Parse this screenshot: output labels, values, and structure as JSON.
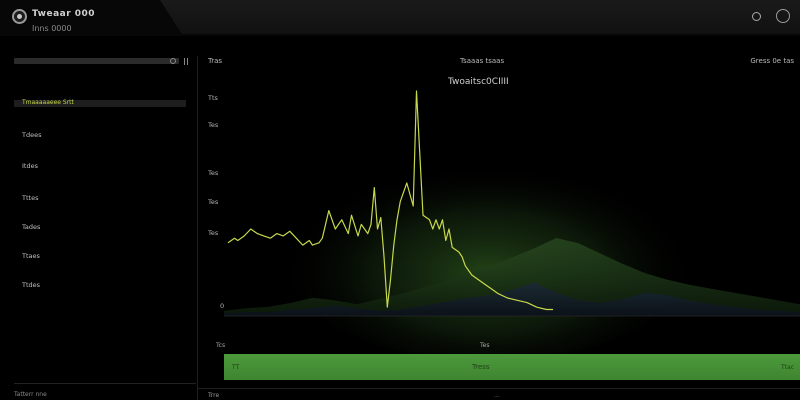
{
  "header": {
    "title": "Tweaar 000",
    "subtitle": "Inns 0000"
  },
  "sidebar": {
    "active_item": "Tmaaaaaeee Srtt",
    "items": [
      "Tdees",
      "Itdes",
      "Tttes",
      "Tades",
      "Ttaes",
      "Ttdes"
    ],
    "footer": "Tatterr nne"
  },
  "main": {
    "left_label": "Tras",
    "center_label": "Tsaaas tsaas",
    "right_label": "Gress 0e tas",
    "bottom_left": "Trre",
    "bottom_mid": "..."
  },
  "progress": {
    "value": 1.0,
    "start_label": "TT",
    "label": "Tress",
    "end_label": "Ttac",
    "axis_left": "Tcs",
    "axis_mid": "Tes"
  },
  "colors": {
    "accent": "#c7d84a",
    "progress": "#4a9439",
    "area_glow": "#2f5a22"
  },
  "chart_data": {
    "type": "line",
    "title": "Twoaitsc0CIIII",
    "y_tick_labels": [
      "Tts",
      "Tes",
      "Tes",
      "Tes",
      "Tes",
      "0"
    ],
    "x_range": [
      0,
      100
    ],
    "ylim": [
      0,
      100
    ],
    "grid": false,
    "series": [
      {
        "x": [
          0,
          2,
          3,
          5,
          7,
          9,
          11,
          13,
          15,
          17,
          19,
          21,
          23,
          25,
          26,
          28,
          29,
          31,
          33,
          34,
          35,
          37,
          38,
          40,
          41,
          43,
          44,
          45,
          46,
          47,
          48,
          49,
          50,
          51,
          52,
          53,
          55,
          57,
          58,
          60,
          62,
          63,
          64,
          65,
          66,
          67,
          68,
          69,
          71,
          72,
          73,
          75,
          77,
          79,
          81,
          83,
          86,
          89,
          92,
          95,
          98,
          100
        ],
        "y": [
          34,
          36,
          35,
          37,
          40,
          38,
          37,
          36,
          38,
          37,
          39,
          36,
          33,
          35,
          33,
          34,
          36,
          48,
          40,
          42,
          44,
          38,
          46,
          37,
          42,
          38,
          42,
          58,
          40,
          45,
          28,
          6,
          18,
          33,
          44,
          52,
          60,
          50,
          100,
          46,
          44,
          40,
          44,
          40,
          44,
          35,
          40,
          32,
          30,
          28,
          24,
          20,
          18,
          16,
          14,
          12,
          10,
          9,
          8,
          6,
          5,
          5
        ]
      }
    ],
    "background_series": [
      {
        "name": "",
        "values": [
          4,
          6,
          7,
          10,
          14,
          12,
          9,
          13,
          17,
          22,
          27,
          32,
          38,
          45,
          52,
          60,
          56,
          48,
          40,
          33,
          28,
          24,
          21,
          18,
          15,
          12,
          9
        ]
      },
      {
        "name": "",
        "values": [
          2,
          3,
          3,
          5,
          6,
          8,
          6,
          4,
          5,
          8,
          11,
          14,
          16,
          20,
          26,
          18,
          12,
          10,
          13,
          18,
          16,
          12,
          9,
          7,
          5,
          4,
          3
        ]
      }
    ]
  }
}
